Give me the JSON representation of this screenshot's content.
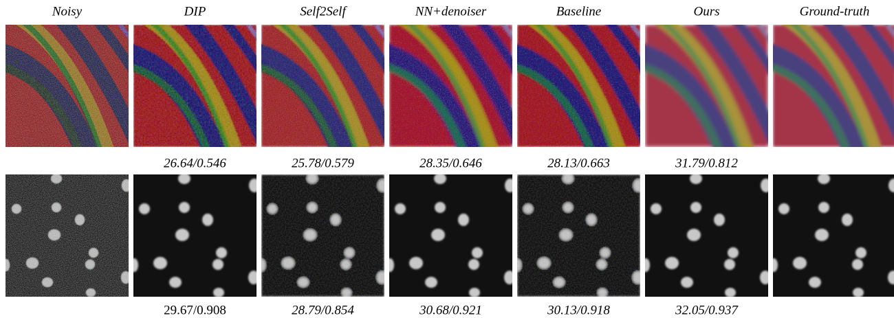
{
  "columns": [
    "Noisy",
    "DIP",
    "Self2Self",
    "NN+denoiser",
    "Baseline",
    "Ours",
    "Ground-truth"
  ],
  "rows": [
    {
      "metrics": [
        "26.64/0.546",
        "25.78/0.579",
        "28.35/0.646",
        "28.13/0.663",
        "31.79/0.812"
      ]
    },
    {
      "metrics": [
        "29.67/0.908",
        "28.79/0.854",
        "30.68/0.921",
        "30.13/0.918",
        "32.05/0.937"
      ]
    }
  ]
}
